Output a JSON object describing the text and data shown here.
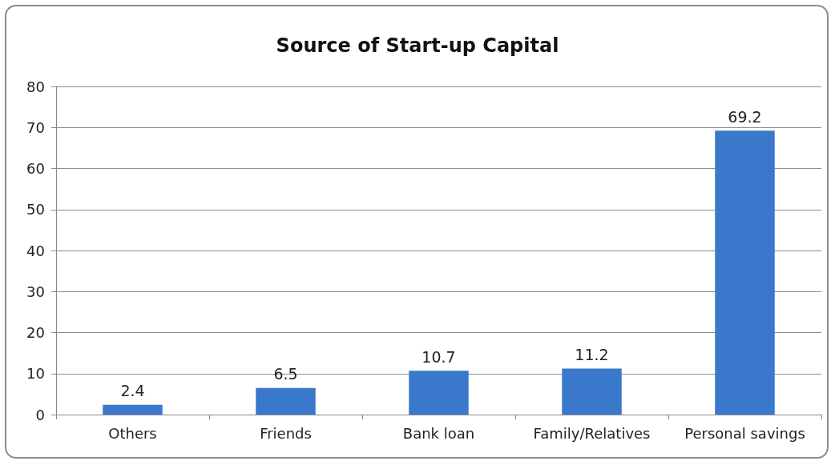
{
  "chart_data": {
    "type": "bar",
    "title": "Source of Start-up Capital",
    "categories": [
      "Others",
      "Friends",
      "Bank loan",
      "Family/Relatives",
      "Personal savings"
    ],
    "values": [
      2.4,
      6.5,
      10.7,
      11.2,
      69.2
    ],
    "color": "#3a78cc",
    "ylim": [
      0,
      80
    ],
    "yticks": [
      0,
      10,
      20,
      30,
      40,
      50,
      60,
      70,
      80
    ],
    "grid": "y",
    "data_labels": true
  }
}
